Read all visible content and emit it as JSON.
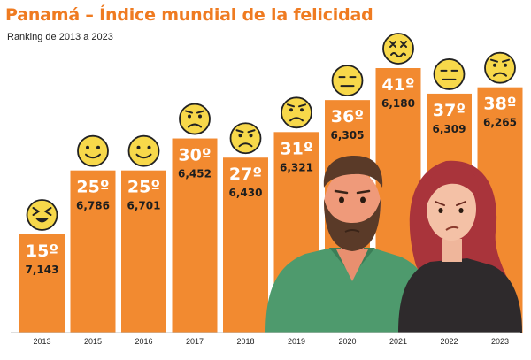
{
  "chart_data": {
    "type": "bar",
    "title": "Panamá – Índice mundial de la felicidad",
    "subtitle": "Ranking de 2013 a 2023",
    "categories": [
      "2013",
      "2015",
      "2016",
      "2017",
      "2018",
      "2019",
      "2020",
      "2021",
      "2022",
      "2023"
    ],
    "rankings": [
      "15º",
      "25º",
      "25º",
      "30º",
      "27º",
      "31º",
      "36º",
      "41º",
      "37º",
      "38º"
    ],
    "scores": [
      "7,143",
      "6,786",
      "6,701",
      "6,452",
      "6,430",
      "6,321",
      "6,305",
      "6,180",
      "6,309",
      "6,265"
    ],
    "values": [
      15,
      25,
      25,
      30,
      27,
      31,
      36,
      41,
      37,
      38
    ],
    "faces": [
      "laughing-face",
      "smiling-face",
      "smiling-face",
      "sad-face",
      "sad-face",
      "sad-face",
      "neutral-face",
      "dizzy-face",
      "neutral-face",
      "sad-face"
    ],
    "bar_color": "#f28a30",
    "accent_color": "#ef7b21",
    "face_color": "#f7d84a",
    "grid": false,
    "legend": "none"
  }
}
